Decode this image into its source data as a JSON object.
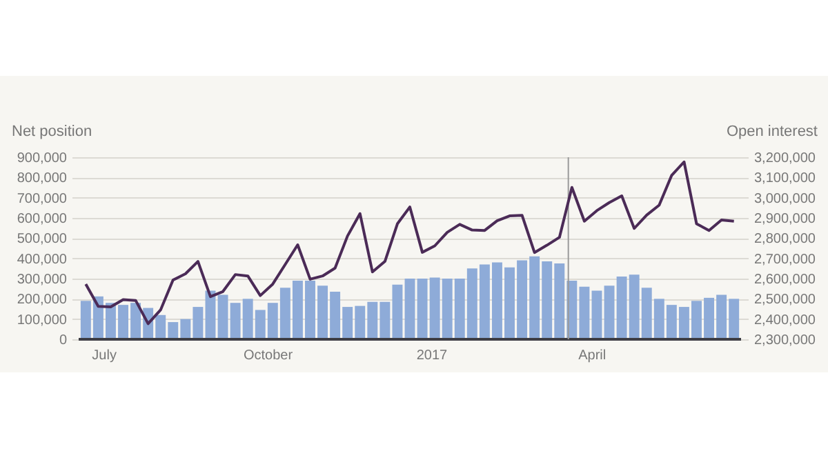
{
  "chart_data": {
    "type": "bar",
    "ylabel": "Net position",
    "y2label": "Open interest",
    "x": [
      "2016-06-21",
      "2016-06-28",
      "2016-07-05",
      "2016-07-12",
      "2016-07-19",
      "2016-07-26",
      "2016-08-02",
      "2016-08-09",
      "2016-08-16",
      "2016-08-23",
      "2016-08-30",
      "2016-09-06",
      "2016-09-13",
      "2016-09-20",
      "2016-09-27",
      "2016-10-04",
      "2016-10-11",
      "2016-10-18",
      "2016-10-25",
      "2016-11-01",
      "2016-11-08",
      "2016-11-15",
      "2016-11-22",
      "2016-11-29",
      "2016-12-06",
      "2016-12-13",
      "2016-12-20",
      "2016-12-27",
      "2017-01-03",
      "2017-01-10",
      "2017-01-17",
      "2017-01-24",
      "2017-01-31",
      "2017-02-07",
      "2017-02-14",
      "2017-02-21",
      "2017-02-28",
      "2017-03-07",
      "2017-03-14",
      "2017-03-21",
      "2017-03-28",
      "2017-04-04",
      "2017-04-11",
      "2017-04-18",
      "2017-04-25",
      "2017-05-02",
      "2017-05-09",
      "2017-05-16",
      "2017-05-23",
      "2017-05-30",
      "2017-06-06",
      "2017-06-13",
      "2017-06-20"
    ],
    "series": [
      {
        "color": "#8eabd8",
        "values": [
          190000,
          212000,
          180000,
          170000,
          180000,
          155000,
          120000,
          85000,
          100000,
          160000,
          240000,
          220000,
          180000,
          200000,
          145000,
          180000,
          255000,
          290000,
          290000,
          265000,
          235000,
          160000,
          165000,
          185000,
          185000,
          270000,
          300000,
          300000,
          305000,
          300000,
          300000,
          350000,
          370000,
          380000,
          355000,
          390000,
          410000,
          385000,
          375000,
          290000,
          260000,
          240000,
          265000,
          310000,
          320000,
          255000,
          200000,
          170000,
          160000,
          190000,
          205000,
          220000,
          200000
        ]
      },
      {
        "type": "line",
        "axis": "y2",
        "color": "#4b2b57",
        "values": [
          2573000,
          2463000,
          2460000,
          2496000,
          2492000,
          2377000,
          2445000,
          2593000,
          2624000,
          2685000,
          2511000,
          2536000,
          2620000,
          2613000,
          2516000,
          2573000,
          2670000,
          2767000,
          2597000,
          2613000,
          2652000,
          2811000,
          2921000,
          2633000,
          2685000,
          2871000,
          2954000,
          2730000,
          2762000,
          2829000,
          2868000,
          2840000,
          2838000,
          2886000,
          2910000,
          2913000,
          2729000,
          2765000,
          2804000,
          3051000,
          2884000,
          2936000,
          2976000,
          3009000,
          2848000,
          2914000,
          2963000,
          3110000,
          3177000,
          2871000,
          2838000,
          2890000,
          2884000
        ]
      }
    ],
    "xlim": [
      "2016-06-17",
      "2017-06-24"
    ],
    "xticks": [
      {
        "value": "2016-07-01",
        "label": "July"
      },
      {
        "value": "2016-10-01",
        "label": "October"
      },
      {
        "value": "2017-01-01",
        "label": "2017"
      },
      {
        "value": "2017-04-01",
        "label": "April"
      }
    ],
    "ylim": [
      0,
      900000
    ],
    "yticks": [
      0,
      {
        "value": 100000,
        "label": "100,000"
      },
      {
        "value": 200000,
        "label": "200,000"
      },
      {
        "value": 300000,
        "label": "300,000"
      },
      {
        "value": 400000,
        "label": "400,000"
      },
      {
        "value": 500000,
        "label": "500,000"
      },
      {
        "value": 600000,
        "label": "600,000"
      },
      {
        "value": 700000,
        "label": "700,000"
      },
      {
        "value": 800000,
        "label": "800,000"
      },
      {
        "value": 900000,
        "label": "900,000"
      }
    ],
    "y2lim": [
      2300000,
      3200000
    ],
    "y2ticks": [
      {
        "value": 2300000,
        "label": "2,300,000"
      },
      {
        "value": 2400000,
        "label": "2,400,000"
      },
      {
        "value": 2500000,
        "label": "2,500,000"
      },
      {
        "value": 2600000,
        "label": "2,600,000"
      },
      {
        "value": 2700000,
        "label": "2,700,000"
      },
      {
        "value": 2800000,
        "label": "2,800,000"
      },
      {
        "value": 2900000,
        "label": "2,900,000"
      },
      {
        "value": 3000000,
        "label": "3,000,000"
      },
      {
        "value": 3100000,
        "label": "3,100,000"
      },
      {
        "value": 3200000,
        "label": "3,200,000"
      }
    ],
    "ref_lines": [
      {
        "axis": "x",
        "value": "2017-03-19",
        "color": "#9a9a9a"
      }
    ],
    "grid": "y"
  }
}
